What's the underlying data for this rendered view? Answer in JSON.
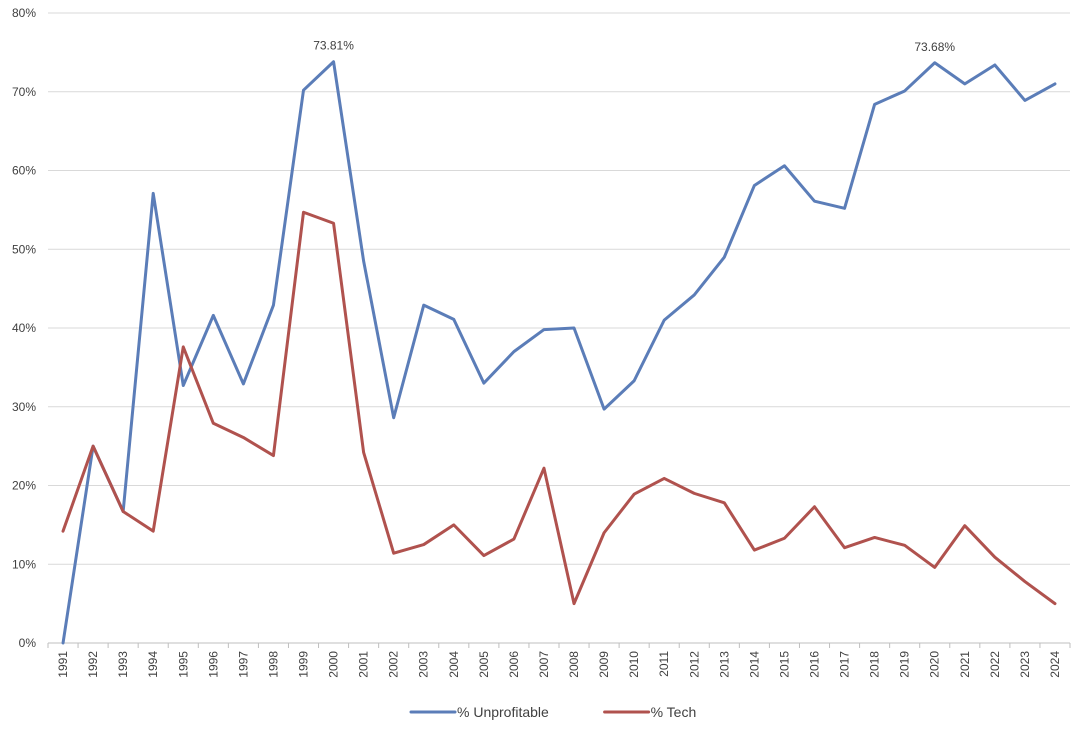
{
  "chart_data": {
    "type": "line",
    "title": "",
    "xlabel": "",
    "ylabel": "",
    "ylim": [
      0,
      80
    ],
    "y_ticks": [
      "0%",
      "10%",
      "20%",
      "30%",
      "40%",
      "50%",
      "60%",
      "70%",
      "80%"
    ],
    "grid": "horizontal",
    "legend_position": "bottom",
    "categories": [
      "1991",
      "1992",
      "1993",
      "1994",
      "1995",
      "1996",
      "1997",
      "1998",
      "1999",
      "2000",
      "2001",
      "2002",
      "2003",
      "2004",
      "2005",
      "2006",
      "2007",
      "2008",
      "2009",
      "2010",
      "2011",
      "2012",
      "2013",
      "2014",
      "2015",
      "2016",
      "2017",
      "2018",
      "2019",
      "2020",
      "2021",
      "2022",
      "2023",
      "2024"
    ],
    "series": [
      {
        "name": "% Unprofitable",
        "color": "#5b7db8",
        "values": [
          0,
          25,
          16.7,
          57.1,
          32.7,
          41.6,
          32.9,
          42.9,
          70.2,
          73.81,
          48.5,
          28.6,
          42.9,
          41.1,
          33.0,
          37.0,
          39.8,
          40.0,
          29.7,
          33.3,
          41.0,
          44.2,
          49.0,
          58.1,
          60.6,
          56.1,
          55.2,
          68.4,
          70.1,
          73.68,
          71.0,
          73.4,
          68.9,
          71.0
        ]
      },
      {
        "name": "% Tech",
        "color": "#b0524e",
        "values": [
          14.2,
          25,
          16.7,
          14.2,
          37.6,
          27.9,
          26.1,
          23.8,
          54.7,
          53.3,
          24.2,
          11.4,
          12.5,
          15.0,
          11.1,
          13.2,
          22.2,
          5.0,
          14.0,
          18.9,
          20.9,
          19.0,
          17.8,
          11.8,
          13.3,
          17.3,
          12.1,
          13.4,
          12.4,
          9.6,
          14.9,
          10.9,
          7.8,
          5.0
        ]
      }
    ],
    "annotations": [
      {
        "series": 0,
        "category": "2000",
        "text": "73.81%"
      },
      {
        "series": 0,
        "category": "2020",
        "text": "73.68%"
      }
    ]
  }
}
